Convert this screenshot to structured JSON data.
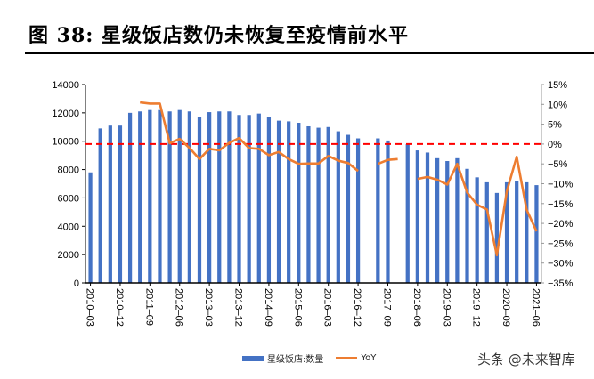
{
  "title": "图 38:  星级饭店数仍未恢复至疫情前水平",
  "legend": {
    "bar_label": "星级饭店:数量",
    "line_label": "YoY"
  },
  "watermark": "头条 @未来智库",
  "colors": {
    "bar": "#4472C4",
    "line": "#ED7D31",
    "reference": "#FF0000"
  },
  "chart_data": {
    "type": "bar+line",
    "title": "星级饭店数仍未恢复至疫情前水平",
    "left_axis": {
      "ylim": [
        0,
        14000
      ],
      "ticks": [
        0,
        2000,
        4000,
        6000,
        8000,
        10000,
        12000,
        14000
      ]
    },
    "right_axis": {
      "ylim": [
        -35,
        15
      ],
      "ticks": [
        "15%",
        "10%",
        "5%",
        "0%",
        "-5%",
        "-10%",
        "-15%",
        "-20%",
        "-25%",
        "-30%",
        "-35%"
      ]
    },
    "x_tick_labels": [
      "2010-03",
      "2010-12",
      "2011-09",
      "2012-06",
      "2013-03",
      "2013-12",
      "2014-09",
      "2015-06",
      "2016-03",
      "2016-12",
      "2017-09",
      "2018-06",
      "2019-03",
      "2019-12",
      "2020-09",
      "2021-06"
    ],
    "categories": [
      "2010-03",
      "2010-06",
      "2010-09",
      "2010-12",
      "2011-03",
      "2011-06",
      "2011-09",
      "2011-12",
      "2012-03",
      "2012-06",
      "2012-09",
      "2012-12",
      "2013-03",
      "2013-06",
      "2013-09",
      "2013-12",
      "2014-03",
      "2014-06",
      "2014-09",
      "2014-12",
      "2015-03",
      "2015-06",
      "2015-09",
      "2015-12",
      "2016-03",
      "2016-06",
      "2016-09",
      "2016-12",
      "2017-03",
      "2017-06",
      "2017-09",
      "2017-12",
      "2018-03",
      "2018-06",
      "2018-09",
      "2018-12",
      "2019-03",
      "2019-06",
      "2019-09",
      "2019-12",
      "2020-03",
      "2020-06",
      "2020-09",
      "2020-12",
      "2021-03",
      "2021-06"
    ],
    "series": [
      {
        "name": "星级饭店:数量",
        "type": "bar",
        "axis": "left",
        "values": [
          7800,
          10900,
          11100,
          11100,
          12000,
          12100,
          12200,
          12200,
          12100,
          12200,
          12100,
          11700,
          12050,
          12100,
          12100,
          11850,
          11850,
          11950,
          11700,
          11450,
          11400,
          11300,
          11050,
          10950,
          11000,
          10700,
          10450,
          10200,
          null,
          10200,
          10050,
          null,
          9800,
          9350,
          9200,
          8800,
          8600,
          8800,
          8050,
          7450,
          7100,
          6350,
          7100,
          7200,
          7100,
          6900
        ]
      },
      {
        "name": "YoY",
        "type": "line",
        "axis": "right",
        "values": [
          null,
          null,
          null,
          null,
          null,
          10.5,
          10.2,
          10.2,
          0.2,
          1.3,
          -1.0,
          -3.8,
          -1.2,
          -1.6,
          0.3,
          1.5,
          -1.0,
          -1.2,
          -2.8,
          -2.0,
          -3.8,
          -5.0,
          -4.9,
          -4.9,
          -3.0,
          -4.2,
          -4.8,
          -6.8,
          null,
          -5.0,
          -4.0,
          -3.8,
          null,
          -8.8,
          -8.3,
          -9.0,
          -10.2,
          -5.0,
          -12.2,
          -15.3,
          -16.5,
          -28.0,
          -12.0,
          -3.2,
          -16.5,
          -22.0
        ]
      },
      {
        "name": "reference",
        "type": "dashed-line",
        "axis": "right",
        "values": [
          0
        ]
      }
    ]
  }
}
